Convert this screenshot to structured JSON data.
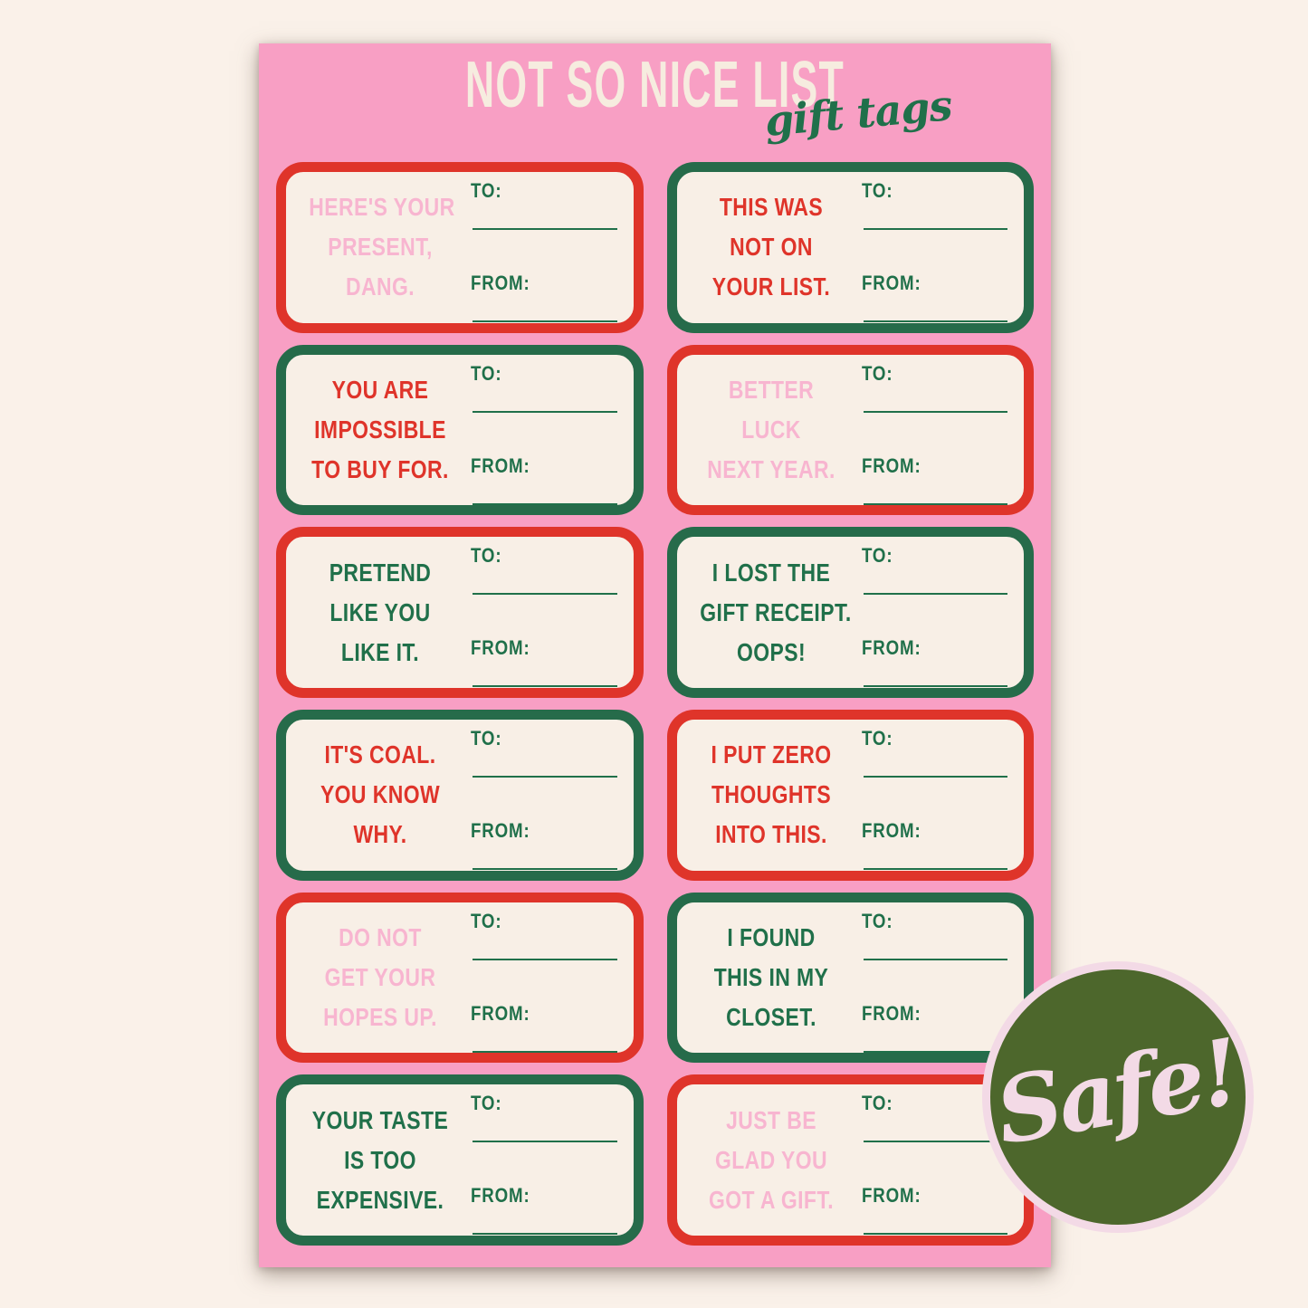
{
  "header": {
    "title": "NOT SO NICE LIST",
    "subtitle": "gift tags"
  },
  "field_labels": {
    "to": "TO:",
    "from": "FROM:"
  },
  "badge": {
    "label": "Safe!"
  },
  "colors": {
    "background": "#faf1e9",
    "sheet_pink": "#f89fc4",
    "tag_fill": "#f8efe6",
    "red": "#df342a",
    "green": "#20704a",
    "border_green": "#266b4a",
    "pink_text": "#f8b5d0",
    "title_cream": "#f6ecdf",
    "badge_olive": "#4d672c",
    "badge_pink": "#f3dae6"
  },
  "tags": [
    {
      "message_lines": [
        "HERE'S YOUR",
        "PRESENT,",
        "DANG."
      ],
      "border": "red",
      "text": "pink"
    },
    {
      "message_lines": [
        "THIS WAS",
        "NOT ON",
        "YOUR LIST."
      ],
      "border": "green",
      "text": "red"
    },
    {
      "message_lines": [
        "YOU ARE",
        "IMPOSSIBLE",
        "TO BUY FOR."
      ],
      "border": "green",
      "text": "red"
    },
    {
      "message_lines": [
        "BETTER",
        "LUCK",
        "NEXT YEAR."
      ],
      "border": "red",
      "text": "pink"
    },
    {
      "message_lines": [
        "PRETEND",
        "LIKE YOU",
        "LIKE IT."
      ],
      "border": "red",
      "text": "green"
    },
    {
      "message_lines": [
        "I LOST THE",
        "GIFT RECEIPT.",
        "OOPS!"
      ],
      "border": "green",
      "text": "green"
    },
    {
      "message_lines": [
        "IT'S COAL.",
        "YOU KNOW",
        "WHY."
      ],
      "border": "green",
      "text": "red"
    },
    {
      "message_lines": [
        "I PUT ZERO",
        "THOUGHTS",
        "INTO THIS."
      ],
      "border": "red",
      "text": "red"
    },
    {
      "message_lines": [
        "DO NOT",
        "GET YOUR",
        "HOPES UP."
      ],
      "border": "red",
      "text": "pink"
    },
    {
      "message_lines": [
        "I FOUND",
        "THIS IN MY",
        "CLOSET."
      ],
      "border": "green",
      "text": "green"
    },
    {
      "message_lines": [
        "YOUR TASTE",
        "IS TOO",
        "EXPENSIVE."
      ],
      "border": "green",
      "text": "green"
    },
    {
      "message_lines": [
        "JUST BE",
        "GLAD YOU",
        "GOT A GIFT."
      ],
      "border": "red",
      "text": "pink"
    }
  ]
}
